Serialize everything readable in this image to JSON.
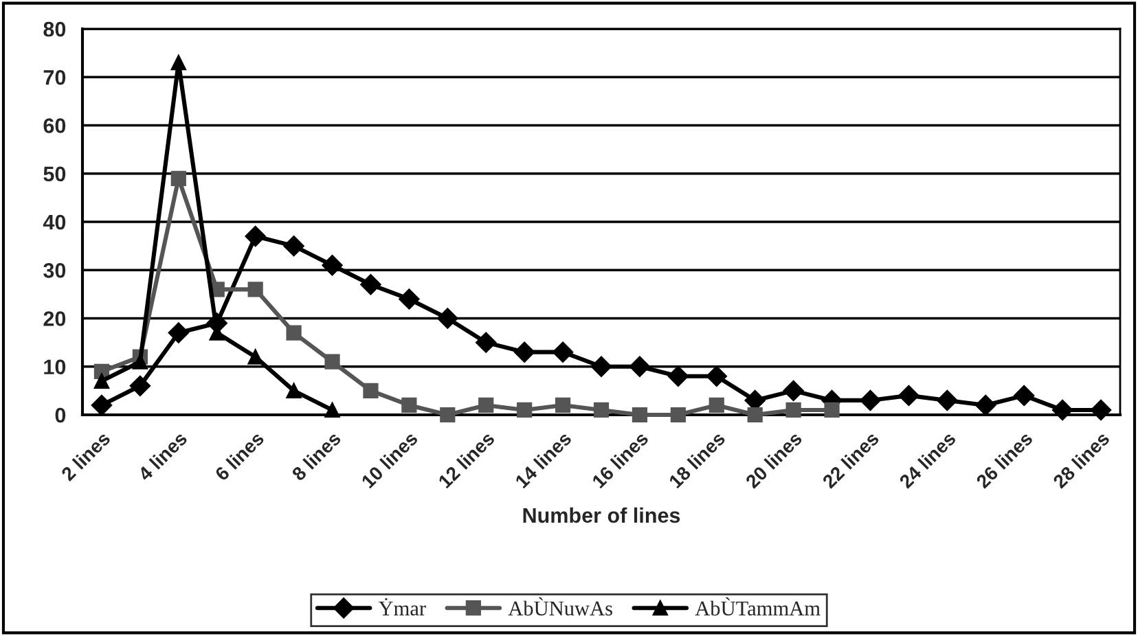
{
  "chart_data": {
    "type": "line",
    "xlabel": "Number of lines",
    "categories": [
      "2 lines",
      null,
      "4 lines",
      null,
      "6 lines",
      null,
      "8 lines",
      null,
      "10 lines",
      null,
      "12 lines",
      null,
      "14 lines",
      null,
      "16 lines",
      null,
      "18 lines",
      null,
      "20 lines",
      null,
      "22 lines",
      null,
      "24 lines",
      null,
      "26 lines",
      null,
      "28 lines"
    ],
    "series": [
      {
        "name": "Ẏmar",
        "color": "#000000",
        "marker": "diamond",
        "values": [
          2,
          6,
          17,
          19,
          37,
          35,
          31,
          27,
          24,
          20,
          15,
          13,
          13,
          10,
          10,
          8,
          8,
          3,
          5,
          3,
          3,
          4,
          3,
          2,
          4,
          1,
          1
        ]
      },
      {
        "name": "AbÙNuwAs",
        "color": "#555555",
        "marker": "square",
        "values": [
          9,
          12,
          49,
          26,
          26,
          17,
          11,
          5,
          2,
          0,
          2,
          1,
          2,
          1,
          0,
          0,
          2,
          0,
          1,
          1,
          null,
          null,
          null,
          null,
          null,
          null,
          null
        ]
      },
      {
        "name": "AbÙTammAm",
        "color": "#000000",
        "marker": "triangle",
        "values": [
          7,
          11,
          73,
          17,
          12,
          5,
          1,
          null,
          null,
          null,
          null,
          null,
          null,
          null,
          null,
          null,
          null,
          null,
          null,
          null,
          null,
          null,
          null,
          null,
          null,
          null,
          null
        ]
      }
    ],
    "ylim": [
      0,
      80
    ],
    "yticks": [
      0,
      10,
      20,
      30,
      40,
      50,
      60,
      70,
      80
    ],
    "grid": "y",
    "legend": "bottom",
    "line_style": "solid"
  }
}
